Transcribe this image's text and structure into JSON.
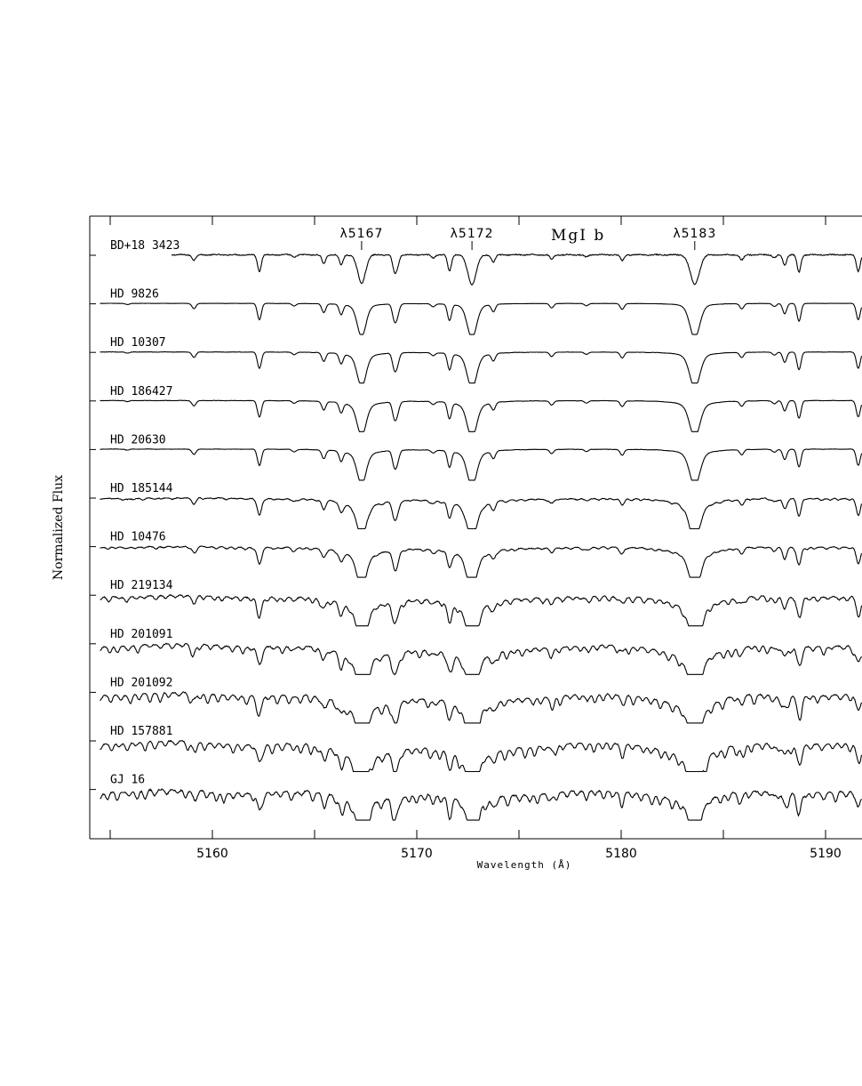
{
  "chart_data": {
    "type": "line",
    "title": "",
    "xlabel": "Wavelength (Å)",
    "ylabel": "Normalized Flux",
    "xlim": [
      5154.5,
      5192
    ],
    "xticks": [
      5160,
      5170,
      5180,
      5190
    ],
    "xtick_labels": [
      "5160",
      "5170",
      "5180",
      "5190"
    ],
    "grid": false,
    "legend": "none",
    "annotations": [
      {
        "text": "λ5167",
        "x": 5167.3
      },
      {
        "text": "λ5172",
        "x": 5172.7
      },
      {
        "text": "λ5183",
        "x": 5183.6
      }
    ],
    "group_label": "MgI  b",
    "line_color": "#000000",
    "lines": [
      {
        "w": 5155.85,
        "d": 0.04
      },
      {
        "w": 5159.1,
        "d": 0.18
      },
      {
        "w": 5162.3,
        "d": 0.55
      },
      {
        "w": 5164.0,
        "d": 0.08
      },
      {
        "w": 5165.45,
        "d": 0.3
      },
      {
        "w": 5166.3,
        "d": 0.35
      },
      {
        "w": 5167.3,
        "d": 0.9,
        "wid": 0.28
      },
      {
        "w": 5168.9,
        "d": 0.5
      },
      {
        "w": 5169.05,
        "d": 0.35
      },
      {
        "w": 5170.8,
        "d": 0.1
      },
      {
        "w": 5171.6,
        "d": 0.55
      },
      {
        "w": 5172.7,
        "d": 0.95,
        "wid": 0.3
      },
      {
        "w": 5173.75,
        "d": 0.25
      },
      {
        "w": 5176.6,
        "d": 0.15
      },
      {
        "w": 5178.3,
        "d": 0.08
      },
      {
        "w": 5180.05,
        "d": 0.2
      },
      {
        "w": 5183.6,
        "d": 0.95,
        "wid": 0.32
      },
      {
        "w": 5185.9,
        "d": 0.18
      },
      {
        "w": 5187.5,
        "d": 0.1
      },
      {
        "w": 5188.0,
        "d": 0.35
      },
      {
        "w": 5188.7,
        "d": 0.6
      },
      {
        "w": 5191.6,
        "d": 0.55
      }
    ],
    "series": [
      {
        "name": "BD+18  3423",
        "x_start": 5158,
        "wing": 0.5,
        "broad": 0.0,
        "mol": 0.0,
        "noise": 0.03
      },
      {
        "name": "HD  9826",
        "x_start": 5154.5,
        "wing": 1.8,
        "broad": 0.05,
        "mol": 0.0,
        "noise": 0.005
      },
      {
        "name": "HD  10307",
        "x_start": 5154.5,
        "wing": 2.2,
        "broad": 0.05,
        "mol": 0.0,
        "noise": 0.008
      },
      {
        "name": "HD  186427",
        "x_start": 5154.5,
        "wing": 2.4,
        "broad": 0.06,
        "mol": 0.0,
        "noise": 0.01
      },
      {
        "name": "HD  20630",
        "x_start": 5154.5,
        "wing": 2.4,
        "broad": 0.06,
        "mol": 0.0,
        "noise": 0.01
      },
      {
        "name": "HD  185144",
        "x_start": 5154.5,
        "wing": 3.2,
        "broad": 0.12,
        "mol": 0.15,
        "noise": 0.02
      },
      {
        "name": "HD  10476",
        "x_start": 5154.5,
        "wing": 3.4,
        "broad": 0.14,
        "mol": 0.18,
        "noise": 0.02
      },
      {
        "name": "HD  219134",
        "x_start": 5154.5,
        "wing": 4.0,
        "broad": 0.25,
        "mol": 0.45,
        "noise": 0.03
      },
      {
        "name": "HD  201091",
        "x_start": 5154.5,
        "wing": 4.5,
        "broad": 0.3,
        "mol": 0.65,
        "noise": 0.03
      },
      {
        "name": "HD  201092",
        "x_start": 5154.5,
        "wing": 4.6,
        "broad": 0.3,
        "mol": 0.75,
        "noise": 0.03
      },
      {
        "name": "HD  157881",
        "x_start": 5154.5,
        "wing": 4.8,
        "broad": 0.3,
        "mol": 0.8,
        "noise": 0.03
      },
      {
        "name": "GJ  16",
        "x_start": 5154.5,
        "wing": 4.0,
        "broad": 0.15,
        "mol": 0.85,
        "noise": 0.04
      }
    ]
  }
}
